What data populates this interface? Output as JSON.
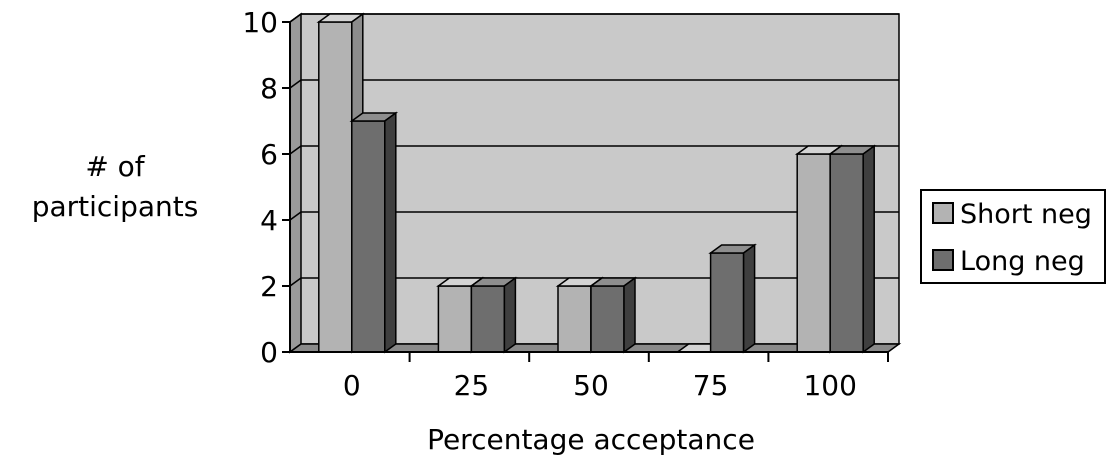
{
  "chart_data": {
    "type": "bar",
    "title": "",
    "xlabel": "Percentage acceptance",
    "ylabel_lines": [
      "# of",
      "participants"
    ],
    "categories": [
      "0",
      "25",
      "50",
      "75",
      "100"
    ],
    "series": [
      {
        "name": "Short neg",
        "values": [
          10,
          2,
          2,
          0,
          6
        ],
        "color": "#b3b3b3"
      },
      {
        "name": "Long neg",
        "values": [
          7,
          2,
          2,
          3,
          6
        ],
        "color": "#6e6e6e"
      }
    ],
    "ylim": [
      0,
      10
    ],
    "yticks": [
      "0",
      "2",
      "4",
      "6",
      "8",
      "10"
    ],
    "grid": true,
    "legend_position": "right",
    "wall_color": "#c9c9c9",
    "floor_color": "#8a8a8a"
  }
}
